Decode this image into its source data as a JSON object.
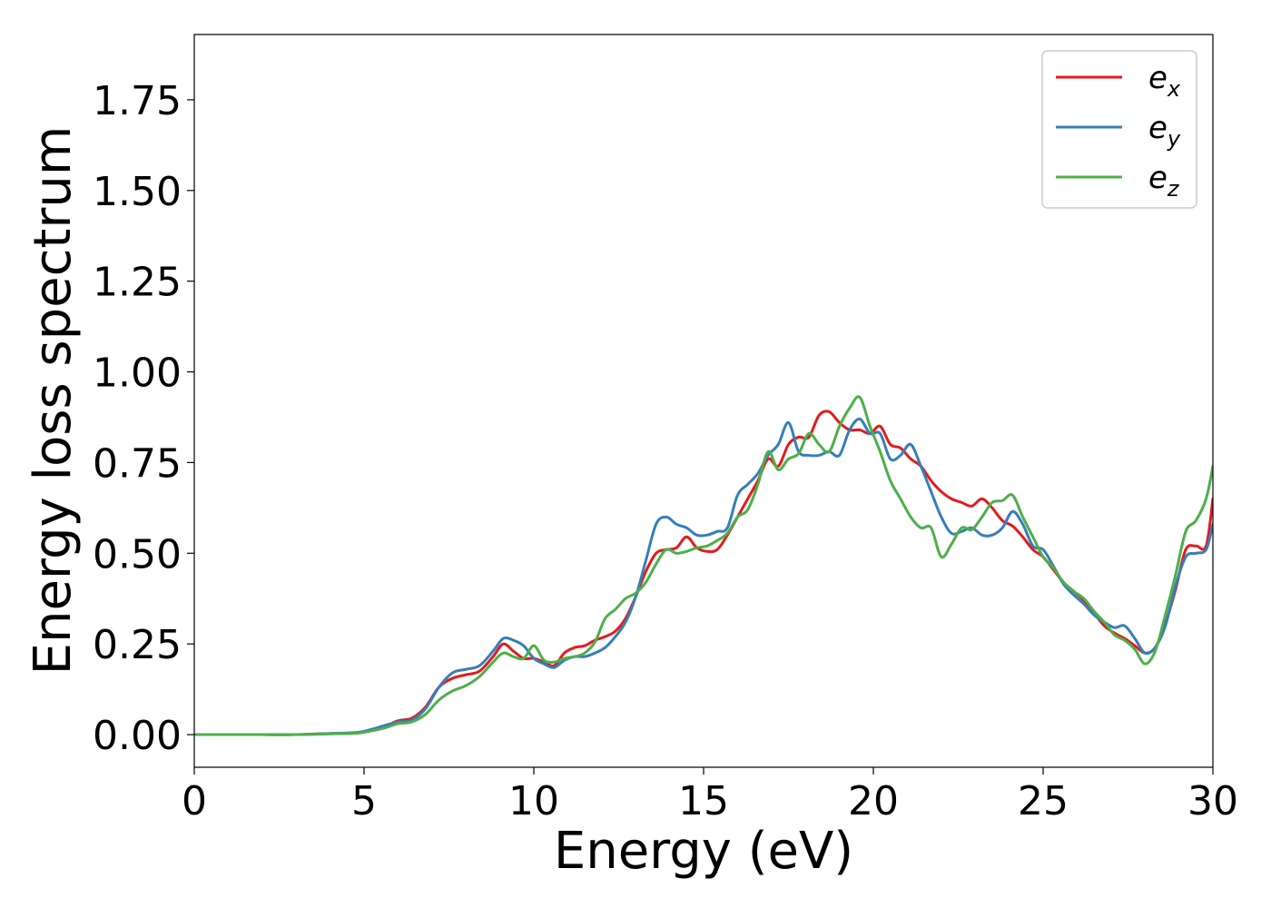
{
  "chart_data": {
    "type": "line",
    "title": "",
    "xlabel": "Energy (eV)",
    "ylabel": "Energy loss spectrum",
    "xlim": [
      0,
      30
    ],
    "ylim": [
      -0.09,
      1.93
    ],
    "xticks": [
      0,
      5,
      10,
      15,
      20,
      25,
      30
    ],
    "xtick_labels": [
      "0",
      "5",
      "10",
      "15",
      "20",
      "25",
      "30"
    ],
    "yticks": [
      0.0,
      0.25,
      0.5,
      0.75,
      1.0,
      1.25,
      1.5,
      1.75
    ],
    "ytick_labels": [
      "0.00",
      "0.25",
      "0.50",
      "0.75",
      "1.00",
      "1.25",
      "1.50",
      "1.75"
    ],
    "grid": false,
    "legend_position": "top-right",
    "series": [
      {
        "name": "e",
        "subscript": "x",
        "color": "#e41a1c",
        "x": [
          0,
          1,
          2,
          3,
          4,
          4.8,
          5.2,
          5.6,
          6.0,
          6.4,
          6.8,
          7.2,
          7.6,
          8.0,
          8.4,
          8.8,
          9.1,
          9.4,
          9.7,
          10.0,
          10.3,
          10.6,
          10.9,
          11.2,
          11.5,
          11.8,
          12.1,
          12.4,
          12.7,
          13.0,
          13.3,
          13.6,
          13.9,
          14.2,
          14.5,
          14.8,
          15.1,
          15.4,
          15.7,
          16.0,
          16.3,
          16.6,
          16.9,
          17.2,
          17.5,
          17.8,
          18.1,
          18.4,
          18.7,
          19.0,
          19.3,
          19.6,
          19.9,
          20.2,
          20.5,
          20.8,
          21.1,
          21.4,
          21.7,
          22.0,
          22.3,
          22.6,
          22.9,
          23.2,
          23.5,
          23.8,
          24.1,
          24.4,
          24.7,
          25.0,
          25.3,
          25.6,
          25.9,
          26.2,
          26.5,
          26.8,
          27.1,
          27.4,
          27.7,
          28.0,
          28.3,
          28.6,
          28.9,
          29.2,
          29.5,
          29.8,
          30.0
        ],
        "y": [
          0.0,
          0.0,
          0.0,
          0.0,
          0.003,
          0.005,
          0.012,
          0.022,
          0.038,
          0.045,
          0.075,
          0.13,
          0.155,
          0.165,
          0.175,
          0.215,
          0.25,
          0.23,
          0.21,
          0.21,
          0.2,
          0.19,
          0.225,
          0.24,
          0.245,
          0.26,
          0.27,
          0.285,
          0.32,
          0.38,
          0.45,
          0.5,
          0.51,
          0.515,
          0.545,
          0.515,
          0.505,
          0.51,
          0.55,
          0.6,
          0.65,
          0.7,
          0.76,
          0.74,
          0.8,
          0.82,
          0.82,
          0.88,
          0.89,
          0.86,
          0.84,
          0.84,
          0.83,
          0.85,
          0.8,
          0.79,
          0.76,
          0.74,
          0.7,
          0.67,
          0.65,
          0.64,
          0.63,
          0.65,
          0.625,
          0.59,
          0.575,
          0.545,
          0.51,
          0.49,
          0.455,
          0.42,
          0.395,
          0.37,
          0.335,
          0.3,
          0.28,
          0.265,
          0.245,
          0.225,
          0.24,
          0.305,
          0.4,
          0.51,
          0.52,
          0.52,
          0.65
        ]
      },
      {
        "name": "e",
        "subscript": "y",
        "color": "#377eb8",
        "x": [
          0,
          1,
          2,
          3,
          4,
          4.8,
          5.2,
          5.6,
          6.0,
          6.4,
          6.8,
          7.2,
          7.6,
          8.0,
          8.4,
          8.8,
          9.1,
          9.4,
          9.7,
          10.0,
          10.3,
          10.6,
          10.9,
          11.2,
          11.5,
          11.8,
          12.1,
          12.4,
          12.7,
          13.0,
          13.3,
          13.6,
          13.9,
          14.2,
          14.5,
          14.8,
          15.1,
          15.4,
          15.7,
          16.0,
          16.3,
          16.6,
          16.9,
          17.2,
          17.5,
          17.8,
          18.1,
          18.4,
          18.7,
          19.0,
          19.3,
          19.6,
          19.9,
          20.2,
          20.5,
          20.8,
          21.1,
          21.4,
          21.7,
          22.0,
          22.3,
          22.6,
          22.9,
          23.2,
          23.5,
          23.8,
          24.1,
          24.4,
          24.7,
          25.0,
          25.3,
          25.6,
          25.9,
          26.2,
          26.5,
          26.8,
          27.1,
          27.4,
          27.7,
          28.0,
          28.3,
          28.6,
          28.9,
          29.2,
          29.5,
          29.8,
          30.0
        ],
        "y": [
          0.0,
          0.0,
          0.0,
          0.0,
          0.003,
          0.006,
          0.014,
          0.025,
          0.035,
          0.04,
          0.07,
          0.13,
          0.17,
          0.18,
          0.19,
          0.23,
          0.265,
          0.26,
          0.245,
          0.21,
          0.195,
          0.185,
          0.205,
          0.215,
          0.215,
          0.225,
          0.24,
          0.27,
          0.31,
          0.38,
          0.48,
          0.58,
          0.6,
          0.58,
          0.57,
          0.55,
          0.55,
          0.56,
          0.57,
          0.66,
          0.69,
          0.72,
          0.77,
          0.8,
          0.86,
          0.78,
          0.77,
          0.77,
          0.78,
          0.77,
          0.84,
          0.87,
          0.83,
          0.83,
          0.76,
          0.77,
          0.8,
          0.74,
          0.67,
          0.6,
          0.555,
          0.56,
          0.57,
          0.55,
          0.55,
          0.57,
          0.615,
          0.58,
          0.52,
          0.51,
          0.465,
          0.415,
          0.385,
          0.36,
          0.33,
          0.31,
          0.295,
          0.3,
          0.265,
          0.225,
          0.24,
          0.3,
          0.41,
          0.49,
          0.5,
          0.51,
          0.58
        ]
      },
      {
        "name": "e",
        "subscript": "z",
        "color": "#4daf4a",
        "x": [
          0,
          1,
          2,
          3,
          4,
          4.8,
          5.2,
          5.6,
          6.0,
          6.4,
          6.8,
          7.2,
          7.6,
          8.0,
          8.4,
          8.8,
          9.1,
          9.4,
          9.7,
          10.0,
          10.3,
          10.6,
          10.9,
          11.2,
          11.5,
          11.8,
          12.1,
          12.4,
          12.7,
          13.0,
          13.3,
          13.6,
          13.9,
          14.2,
          14.5,
          14.8,
          15.1,
          15.4,
          15.7,
          16.0,
          16.3,
          16.6,
          16.9,
          17.2,
          17.5,
          17.8,
          18.1,
          18.4,
          18.7,
          19.0,
          19.3,
          19.6,
          19.9,
          20.2,
          20.5,
          20.8,
          21.1,
          21.4,
          21.7,
          22.0,
          22.3,
          22.6,
          22.9,
          23.2,
          23.5,
          23.8,
          24.1,
          24.4,
          24.7,
          25.0,
          25.3,
          25.6,
          25.9,
          26.2,
          26.5,
          26.8,
          27.1,
          27.4,
          27.7,
          28.0,
          28.3,
          28.6,
          28.9,
          29.2,
          29.5,
          29.8,
          30.0
        ],
        "y": [
          0.0,
          0.0,
          0.0,
          0.0,
          0.002,
          0.004,
          0.01,
          0.018,
          0.03,
          0.035,
          0.055,
          0.095,
          0.12,
          0.135,
          0.16,
          0.2,
          0.225,
          0.215,
          0.21,
          0.245,
          0.205,
          0.2,
          0.21,
          0.215,
          0.225,
          0.255,
          0.32,
          0.345,
          0.375,
          0.39,
          0.42,
          0.47,
          0.51,
          0.5,
          0.505,
          0.515,
          0.52,
          0.535,
          0.555,
          0.6,
          0.62,
          0.69,
          0.78,
          0.73,
          0.76,
          0.775,
          0.83,
          0.8,
          0.78,
          0.85,
          0.9,
          0.93,
          0.85,
          0.78,
          0.7,
          0.65,
          0.6,
          0.57,
          0.57,
          0.49,
          0.525,
          0.57,
          0.565,
          0.6,
          0.64,
          0.645,
          0.66,
          0.6,
          0.545,
          0.49,
          0.46,
          0.42,
          0.395,
          0.375,
          0.34,
          0.31,
          0.275,
          0.26,
          0.235,
          0.195,
          0.23,
          0.33,
          0.44,
          0.56,
          0.59,
          0.65,
          0.74
        ]
      }
    ]
  }
}
